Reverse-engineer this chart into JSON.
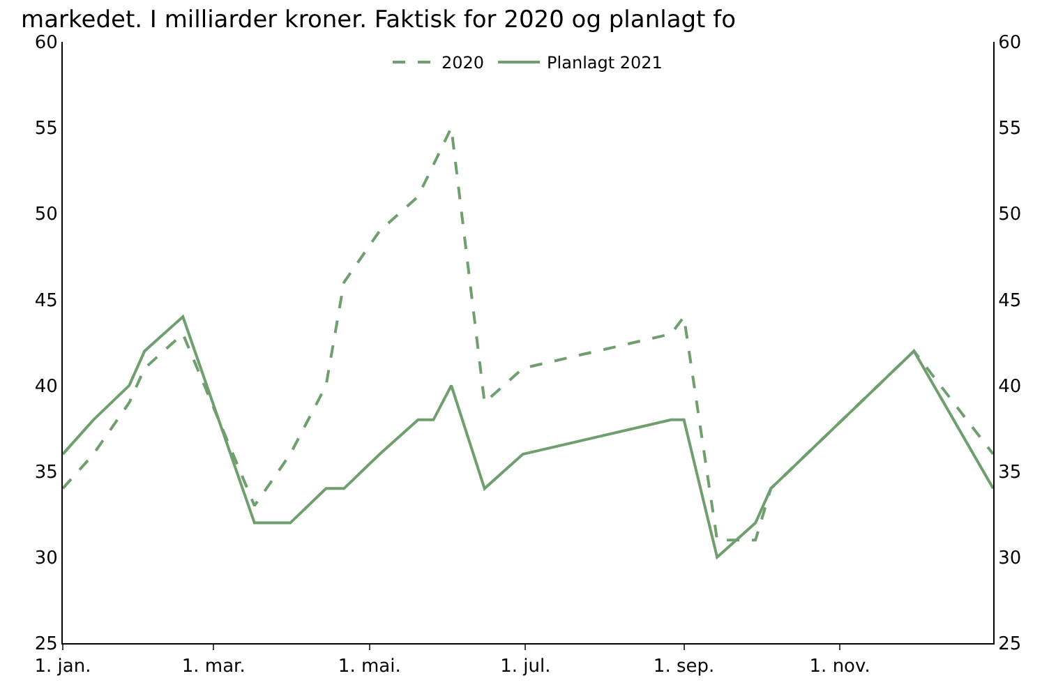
{
  "chart_data": {
    "type": "line",
    "title": "markedet. I milliarder kroner. Faktisk for 2020 og planlagt fo",
    "xlim": [
      "--01-01",
      "--12-31"
    ],
    "xticks": [
      {
        "value": "--01-01",
        "label": "1. jan."
      },
      {
        "value": "--03-01",
        "label": "1. mar."
      },
      {
        "value": "--05-01",
        "label": "1. mai."
      },
      {
        "value": "--07-01",
        "label": "1. jul."
      },
      {
        "value": "--09-01",
        "label": "1. sep."
      },
      {
        "value": "--11-01",
        "label": "1. nov."
      }
    ],
    "ylim": [
      25,
      60
    ],
    "yticks": [
      25,
      30,
      35,
      40,
      45,
      50,
      55,
      60
    ],
    "y2lim": [
      25,
      60
    ],
    "y2ticks": [
      25,
      30,
      35,
      40,
      45,
      50,
      55,
      60
    ],
    "grid": false,
    "legend": "top",
    "marker": "none",
    "series": [
      {
        "name": "2020",
        "color": "#6f9f6f",
        "line_style": "dashed",
        "x": [
          "--01-01",
          "--01-13",
          "--01-27",
          "--02-02",
          "--02-17",
          "--03-17",
          "--03-31",
          "--04-14",
          "--04-21",
          "--05-05",
          "--05-20",
          "--06-02",
          "--06-15",
          "--06-30",
          "--08-27",
          "--09-01",
          "--09-14",
          "--09-29",
          "--10-05",
          "--11-30",
          "--12-31"
        ],
        "values": [
          34,
          36,
          39,
          41,
          43,
          33,
          36,
          40,
          46,
          49,
          51,
          55,
          39,
          41,
          43,
          44,
          31,
          31,
          34,
          42,
          36
        ]
      },
      {
        "name": "Planlagt 2021",
        "color": "#6f9f6f",
        "line_style": "solid",
        "x": [
          "--01-01",
          "--01-13",
          "--01-27",
          "--02-02",
          "--02-17",
          "--03-17",
          "--03-31",
          "--04-14",
          "--04-21",
          "--05-05",
          "--05-20",
          "--05-26",
          "--06-02",
          "--06-15",
          "--06-30",
          "--08-27",
          "--09-01",
          "--09-14",
          "--09-29",
          "--10-05",
          "--11-30",
          "--12-31"
        ],
        "values": [
          36,
          38,
          40,
          42,
          44,
          32,
          32,
          34,
          34,
          36,
          38,
          38,
          40,
          34,
          36,
          38,
          38,
          30,
          32,
          34,
          42,
          34
        ]
      }
    ]
  }
}
